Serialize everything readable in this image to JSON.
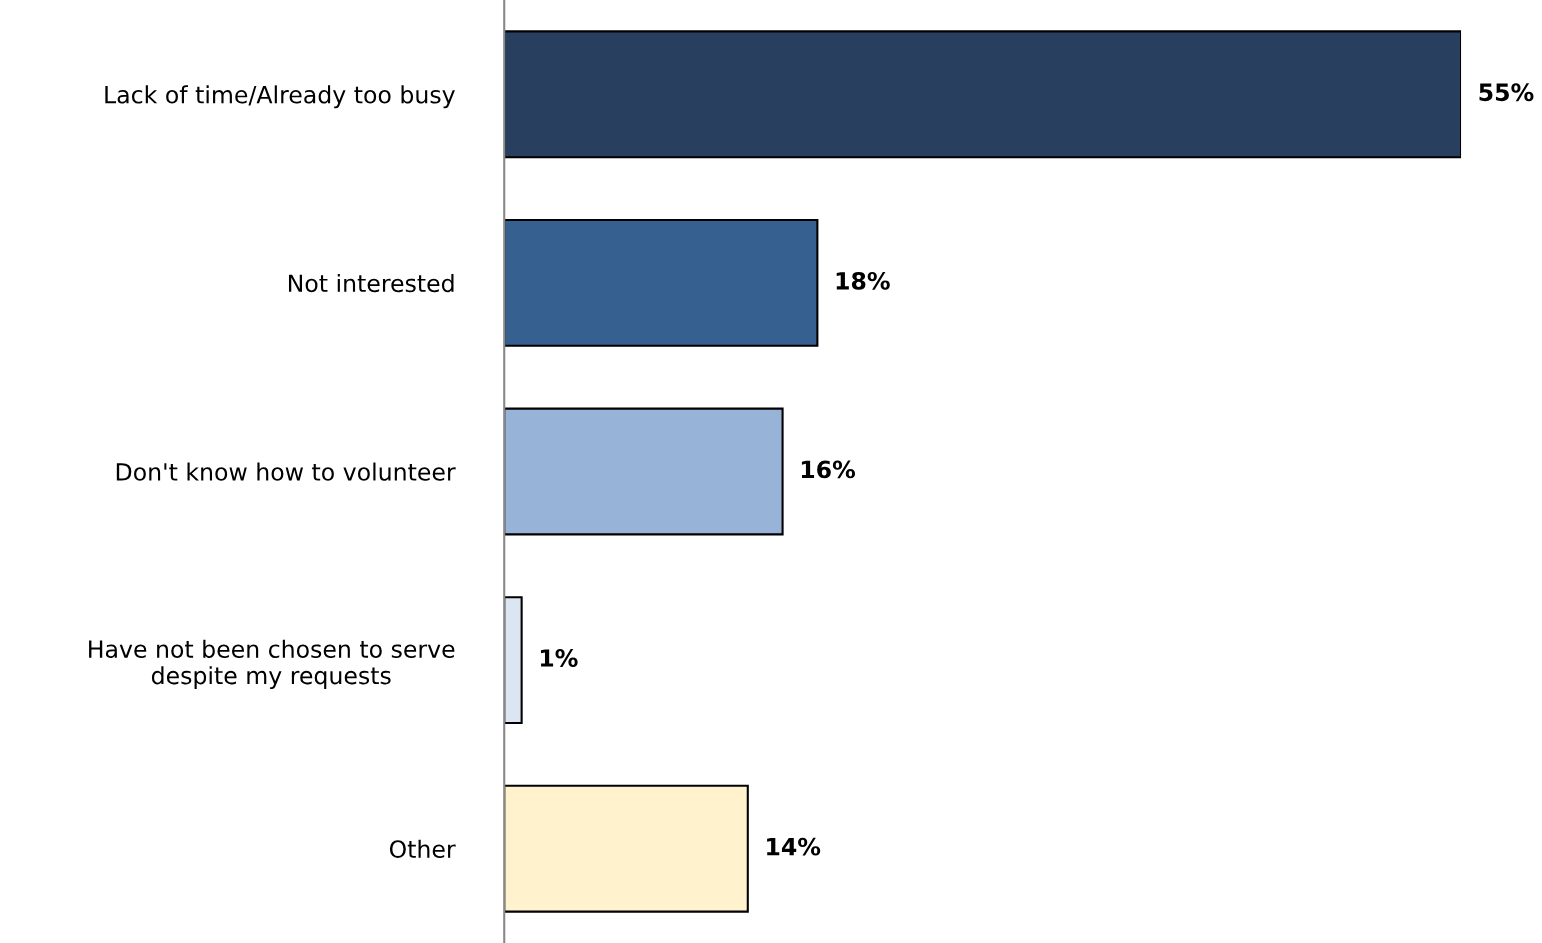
{
  "chart_data": {
    "type": "bar",
    "orientation": "horizontal",
    "categories": [
      "Lack of time/Already too busy",
      "Not interested",
      "Don't know how to volunteer",
      "Have not been chosen to serve\ndespite my requests",
      "Other"
    ],
    "values": [
      55,
      18,
      16,
      1,
      14
    ],
    "colors": [
      "#283f5f",
      "#36608f",
      "#97b3d7",
      "#dce6f2",
      "#fff2cc"
    ],
    "value_labels": [
      "55%",
      "18%",
      "16%",
      "1%",
      "14%"
    ],
    "grid": false,
    "legend": false
  }
}
